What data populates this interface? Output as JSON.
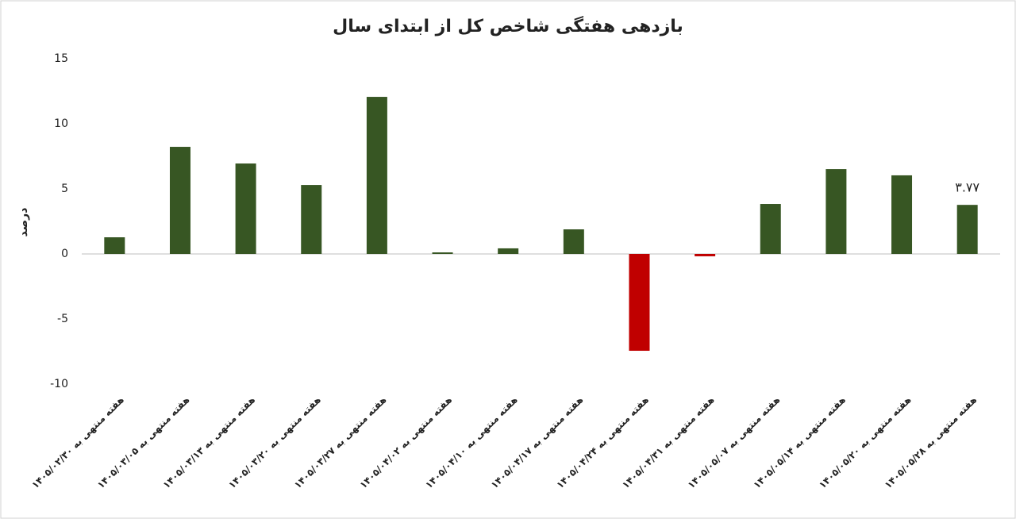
{
  "chart_data": {
    "type": "bar",
    "title": "بازدهی هفتگی شاخص کل از ابتدای سال",
    "y_label": "درصد",
    "categories": [
      "هفته منتهی به ۱۴۰۵/۰۲/۳۰",
      "هفته منتهی به ۱۴۰۵/۰۳/۰۵",
      "هفته منتهی به ۱۴۰۵/۰۳/۱۳",
      "هفته منتهی به ۱۴۰۵/۰۳/۲۰",
      "هفته منتهی به ۱۴۰۵/۰۳/۲۷",
      "هفته منتهی به ۱۴۰۵/۰۴/۰۲",
      "هفته منتهی به ۱۴۰۵/۰۴/۱۰",
      "هفته منتهی به ۱۴۰۵/۰۴/۱۷",
      "هفته منتهی به ۱۴۰۵/۰۴/۲۴",
      "هفته منتهی به ۱۴۰۵/۰۴/۳۱",
      "هفته منتهی به ۱۴۰۵/۰۵/۰۷",
      "هفته منتهی به ۱۴۰۵/۰۵/۱۴",
      "هفته منتهی به ۱۴۰۵/۰۵/۲۰",
      "هفته منتهی به ۱۴۰۵/۰۵/۲۸"
    ],
    "values": [
      1.28,
      8.23,
      6.95,
      5.3,
      12.07,
      0.12,
      0.43,
      1.89,
      -7.44,
      -0.18,
      3.84,
      6.52,
      6.04,
      3.77
    ],
    "value_labels": [
      null,
      null,
      null,
      null,
      null,
      null,
      null,
      null,
      null,
      null,
      null,
      null,
      null,
      "۳.۷۷"
    ],
    "color": "#375623",
    "negative_color": "#c00000",
    "ylim": [
      -10,
      15
    ],
    "yticks": [
      -10,
      -5,
      0,
      5,
      10,
      15
    ],
    "grid": false
  }
}
